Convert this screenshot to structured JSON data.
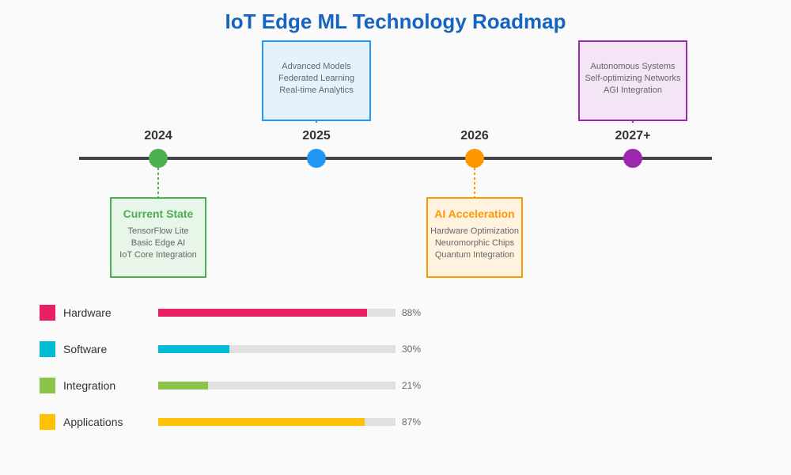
{
  "title": "IoT Edge ML Technology Roadmap",
  "colors": {
    "title": "#1565c0",
    "axis": "#444444",
    "track": "#e0e0e0"
  },
  "milestones": [
    {
      "year": "2024",
      "title": "Current State",
      "items": [
        "TensorFlow Lite",
        "Basic Edge AI",
        "IoT Core Integration"
      ],
      "color": "#4caf50",
      "fill": "#e8f5e9",
      "position": "below"
    },
    {
      "year": "2025",
      "title": "",
      "items": [
        "Advanced Models",
        "Federated Learning",
        "Real-time Analytics"
      ],
      "color": "#2196f3",
      "fill": "#e3f2fd",
      "position": "above"
    },
    {
      "year": "2026",
      "title": "AI Acceleration",
      "items": [
        "Hardware Optimization",
        "Neuromorphic Chips",
        "Quantum Integration"
      ],
      "color": "#ff9800",
      "fill": "#fff3e0",
      "position": "below"
    },
    {
      "year": "2027+",
      "title": "",
      "items": [
        "Autonomous Systems",
        "Self-optimizing Networks",
        "AGI Integration"
      ],
      "color": "#9c27b0",
      "fill": "#f3e5f5",
      "position": "above"
    }
  ],
  "chart_data": {
    "type": "bar",
    "orientation": "horizontal",
    "categories": [
      "Hardware",
      "Software",
      "Integration",
      "Applications"
    ],
    "values": [
      88,
      30,
      21,
      87
    ],
    "labels": [
      "88%",
      "30%",
      "21%",
      "87%"
    ],
    "colors": [
      "#e91e63",
      "#00bcd4",
      "#8bc34a",
      "#ffc107"
    ],
    "xlim": [
      0,
      100
    ]
  }
}
